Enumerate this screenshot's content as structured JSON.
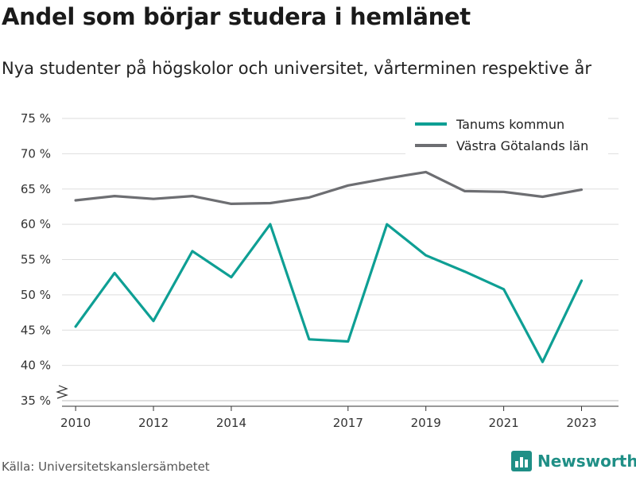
{
  "header": {
    "title": "Andel som börjar studera i hemlänet",
    "subtitle": "Nya studenter på högskolor och universitet, vårterminen respektive år"
  },
  "footer": {
    "source": "Källa: Universitetskanslersämbetet",
    "brand": "Newsworthy",
    "brand_icon": "bar-chart-icon",
    "brand_color": "#1f8f86"
  },
  "chart_data": {
    "type": "line",
    "title": "Andel som börjar studera i hemlänet",
    "subtitle": "Nya studenter på högskolor och universitet, vårterminen respektive år",
    "xlabel": "",
    "ylabel": "",
    "x": [
      2010,
      2011,
      2012,
      2013,
      2014,
      2015,
      2016,
      2017,
      2018,
      2019,
      2020,
      2021,
      2022,
      2023
    ],
    "x_tick_labels": [
      "2010",
      "2012",
      "2014",
      "2017",
      "2019",
      "2021",
      "2023"
    ],
    "x_tick_values": [
      2010,
      2012,
      2014,
      2017,
      2019,
      2021,
      2023
    ],
    "ylim": [
      35,
      75
    ],
    "y_tick_values": [
      35,
      40,
      45,
      50,
      55,
      60,
      65,
      70,
      75
    ],
    "y_tick_labels": [
      "35 %",
      "40 %",
      "45 %",
      "50 %",
      "55 %",
      "60 %",
      "65 %",
      "70 %",
      "75 %"
    ],
    "y_axis_break": true,
    "grid": true,
    "legend_position": "top-right",
    "series": [
      {
        "name": "Tanums kommun",
        "color": "#0e9f94",
        "values": [
          45.5,
          53.1,
          46.3,
          56.2,
          52.5,
          60.0,
          43.7,
          43.4,
          60.0,
          55.6,
          53.3,
          50.8,
          40.5,
          52.0
        ]
      },
      {
        "name": "Västra Götalands län",
        "color": "#6d6e72",
        "values": [
          63.4,
          64.0,
          63.6,
          64.0,
          62.9,
          63.0,
          63.8,
          65.5,
          66.5,
          67.4,
          64.7,
          64.6,
          63.9,
          64.9
        ]
      }
    ]
  }
}
